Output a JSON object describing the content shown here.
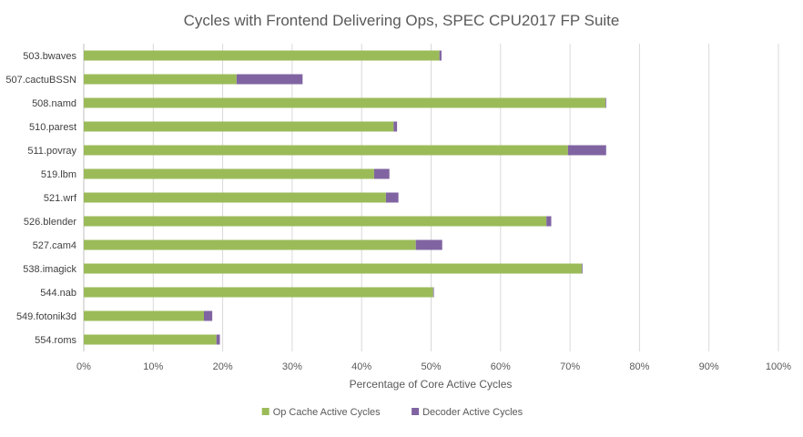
{
  "chart_data": {
    "type": "bar",
    "orientation": "horizontal",
    "stacked": true,
    "title": "Cycles with Frontend Delivering Ops, SPEC CPU2017 FP Suite",
    "xlabel": "Percentage of Core Active Cycles",
    "ylabel": "",
    "xlim": [
      0,
      100
    ],
    "x_ticks": [
      "0%",
      "10%",
      "20%",
      "30%",
      "40%",
      "50%",
      "60%",
      "70%",
      "80%",
      "90%",
      "100%"
    ],
    "grid": "vertical",
    "legend_position": "bottom-center",
    "categories": [
      "503.bwaves",
      "507.cactuBSSN",
      "508.namd",
      "510.parest",
      "511.povray",
      "519.lbm",
      "521.wrf",
      "526.blender",
      "527.cam4",
      "538.imagick",
      "544.nab",
      "549.fotonik3d",
      "554.roms"
    ],
    "series": [
      {
        "name": "Op Cache Active Cycles",
        "color": "#9bbb59",
        "values": [
          51.2,
          22.0,
          75.1,
          44.6,
          69.7,
          41.8,
          43.5,
          66.6,
          47.8,
          71.7,
          50.3,
          17.3,
          19.1
        ]
      },
      {
        "name": "Decoder Active Cycles",
        "color": "#8064a2",
        "values": [
          0.3,
          9.5,
          0.1,
          0.5,
          5.5,
          2.2,
          1.8,
          0.7,
          3.8,
          0.1,
          0.1,
          1.2,
          0.5
        ]
      }
    ]
  }
}
